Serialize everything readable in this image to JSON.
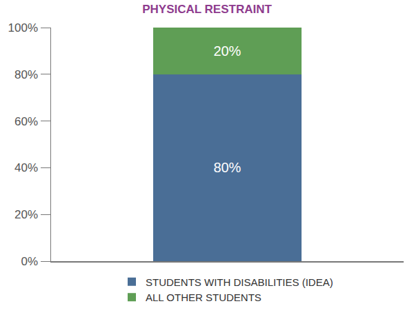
{
  "chart_data": {
    "type": "bar",
    "title": "PHYSICAL RESTRAINT",
    "categories": [
      null
    ],
    "series": [
      {
        "name": "STUDENTS WITH DISABILITIES (IDEA)",
        "color": "#4a6e96",
        "values": [
          80
        ],
        "value_labels": [
          "80%"
        ]
      },
      {
        "name": "ALL OTHER STUDENTS",
        "color": "#5f9e55",
        "values": [
          20
        ],
        "value_labels": [
          "20%"
        ]
      }
    ],
    "ylim": [
      0,
      100
    ],
    "yticks": [
      {
        "value": 0,
        "label": "0%"
      },
      {
        "value": 20,
        "label": "20%"
      },
      {
        "value": 40,
        "label": "40%"
      },
      {
        "value": 60,
        "label": "60%"
      },
      {
        "value": 80,
        "label": "80%"
      },
      {
        "value": 100,
        "label": "100%"
      }
    ],
    "stacked": true,
    "data_labels": true,
    "grid": false,
    "legend": "bottom",
    "tick_labels": "y"
  }
}
